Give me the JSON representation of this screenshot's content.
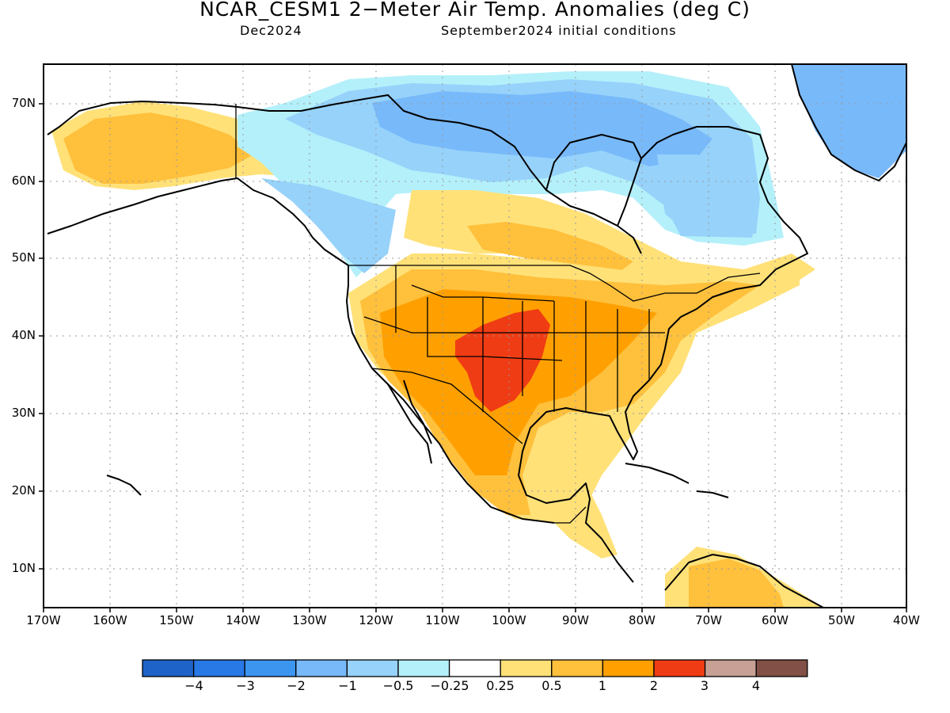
{
  "header": {
    "title": "NCAR_CESM1 2−Meter Air Temp. Anomalies (deg C)",
    "valid_month": "Dec2024",
    "init": "September2024 initial conditions"
  },
  "axes": {
    "lat_labels": [
      "70N",
      "60N",
      "50N",
      "40N",
      "30N",
      "20N",
      "10N"
    ],
    "lon_labels": [
      "170W",
      "160W",
      "150W",
      "140W",
      "130W",
      "120W",
      "110W",
      "100W",
      "90W",
      "80W",
      "70W",
      "60W",
      "50W",
      "40W"
    ]
  },
  "colorbar": {
    "colors": [
      "#1e64c8",
      "#2878e6",
      "#3c96f0",
      "#78b9fa",
      "#96d2fa",
      "#b4f0fa",
      "#ffffff",
      "#ffe178",
      "#ffc03c",
      "#ffa000",
      "#f03c14",
      "#c8a096",
      "#825046"
    ],
    "labels": [
      "−4",
      "−3",
      "−2",
      "−1",
      "−0.5",
      "−0.25",
      "0.25",
      "0.5",
      "1",
      "2",
      "3",
      "4"
    ]
  },
  "map_data": {
    "region": "North America",
    "lon_range": [
      -170,
      -40
    ],
    "lat_range": [
      5,
      75
    ],
    "variable": "2-meter air temperature anomaly",
    "units": "deg C",
    "anomaly_regions": [
      {
        "area": "Alaska",
        "anomaly_class": "0.5 to 2"
      },
      {
        "area": "Northern Canada / Arctic Archipelago",
        "anomaly_class": "-2 to -0.25"
      },
      {
        "area": "Quebec / Labrador",
        "anomaly_class": "-1 to -0.25"
      },
      {
        "area": "Greenland",
        "anomaly_class": "-2 to -0.5"
      },
      {
        "area": "Western Canada",
        "anomaly_class": "-1 to -0.25"
      },
      {
        "area": "Central & Western US",
        "anomaly_class": "1 to 2"
      },
      {
        "area": "Southern Plains (Kansas/Oklahoma/Texas)",
        "anomaly_class": "2 to 3"
      },
      {
        "area": "Eastern US",
        "anomaly_class": "0.5 to 2"
      },
      {
        "area": "Mexico",
        "anomaly_class": "0.5 to 2"
      },
      {
        "area": "Northern South America",
        "anomaly_class": "0.5 to 2"
      }
    ]
  }
}
